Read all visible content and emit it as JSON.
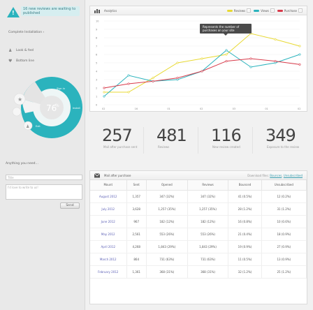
{
  "sidebar": {
    "alert_text": "16 new reviews are waiting to published",
    "complete_installation": "Complete Installation  ›",
    "look_feel": "Look & feel",
    "bottom_line": "Bottom line",
    "donut": {
      "center_value": "76",
      "segments": [
        "Sign in",
        "Install",
        "Exit"
      ]
    },
    "anything_label": "Anything you need…",
    "title_placeholder": "Title",
    "message_placeholder": "I'd love to write to us!",
    "send_label": "Send"
  },
  "chart_panel": {
    "title": "Analytics",
    "legend": [
      {
        "name": "Reviews",
        "color": "#e8d932"
      },
      {
        "name": "Views",
        "color": "#2bb3bd"
      },
      {
        "name": "Purchase",
        "color": "#d83a4a"
      }
    ],
    "tooltip": "Represents the number of purchases on your site"
  },
  "chart_data": {
    "type": "line",
    "x": [
      "02",
      "09",
      "16",
      "23",
      "30",
      "06",
      "13",
      "20",
      "27"
    ],
    "x_ticks_visible": [
      "02",
      "16",
      "01",
      "02",
      "03",
      "01",
      "02"
    ],
    "ylim": [
      0,
      10
    ],
    "y_ticks": [
      "0",
      "1",
      "2",
      "3",
      "4",
      "5",
      "6",
      "7",
      "8",
      "9",
      "10"
    ],
    "series": [
      {
        "name": "Reviews",
        "color": "#e8d932",
        "values": [
          1.5,
          1.5,
          3.2,
          5.0,
          5.5,
          6.0,
          8.5,
          7.8,
          7.0
        ]
      },
      {
        "name": "Views",
        "color": "#2bb3bd",
        "values": [
          1.0,
          3.5,
          2.8,
          3.0,
          4.0,
          6.5,
          4.5,
          5.0,
          6.0
        ]
      },
      {
        "name": "Purchase",
        "color": "#d83a4a",
        "values": [
          2.0,
          2.5,
          2.8,
          3.2,
          4.0,
          5.2,
          5.5,
          5.2,
          4.8
        ]
      }
    ]
  },
  "stats": [
    {
      "value": "257",
      "label": "Mail after purchase sent"
    },
    {
      "value": "481",
      "label": "Reviews"
    },
    {
      "value": "116",
      "label": "New review created"
    },
    {
      "value": "349",
      "label": "Exposure to the review"
    }
  ],
  "table_panel": {
    "title": "Mail after purchase",
    "download_label": "Download files:",
    "download_links": [
      "Bounces",
      "Unsubscribed"
    ],
    "columns": [
      "Mount",
      "Sent",
      "Opened",
      "Reviews",
      "Bounced",
      "Unsubscribed"
    ],
    "rows": [
      [
        "August 2012",
        "1,357",
        "347 (32%)",
        "347 (32%)",
        "41 (0.5%)",
        "12 (0.2%)"
      ],
      [
        "July 2012",
        "3,628",
        "1,257 (35%)",
        "1,257 (35%)",
        "28 (1.2%)",
        "31 (1.2%)"
      ],
      [
        "June 2012",
        "967",
        "182 (12%)",
        "182 (12%)",
        "16 (0.8%)",
        "10 (0.6%)"
      ],
      [
        "May 2012",
        "2,561",
        "553 (26%)",
        "553 (26%)",
        "21 (0.4%)",
        "18 (0.9%)"
      ],
      [
        "April 2012",
        "4,268",
        "1,843 (29%)",
        "1,843 (29%)",
        "19 (0.9%)",
        "27 (0.9%)"
      ],
      [
        "March 2012",
        "864",
        "731 (63%)",
        "731 (63%)",
        "11 (0.5%)",
        "13 (0.9%)"
      ],
      [
        "February 2012",
        "1,361",
        "368 (31%)",
        "368 (31%)",
        "32 (1.2%)",
        "25 (1.2%)"
      ]
    ]
  }
}
